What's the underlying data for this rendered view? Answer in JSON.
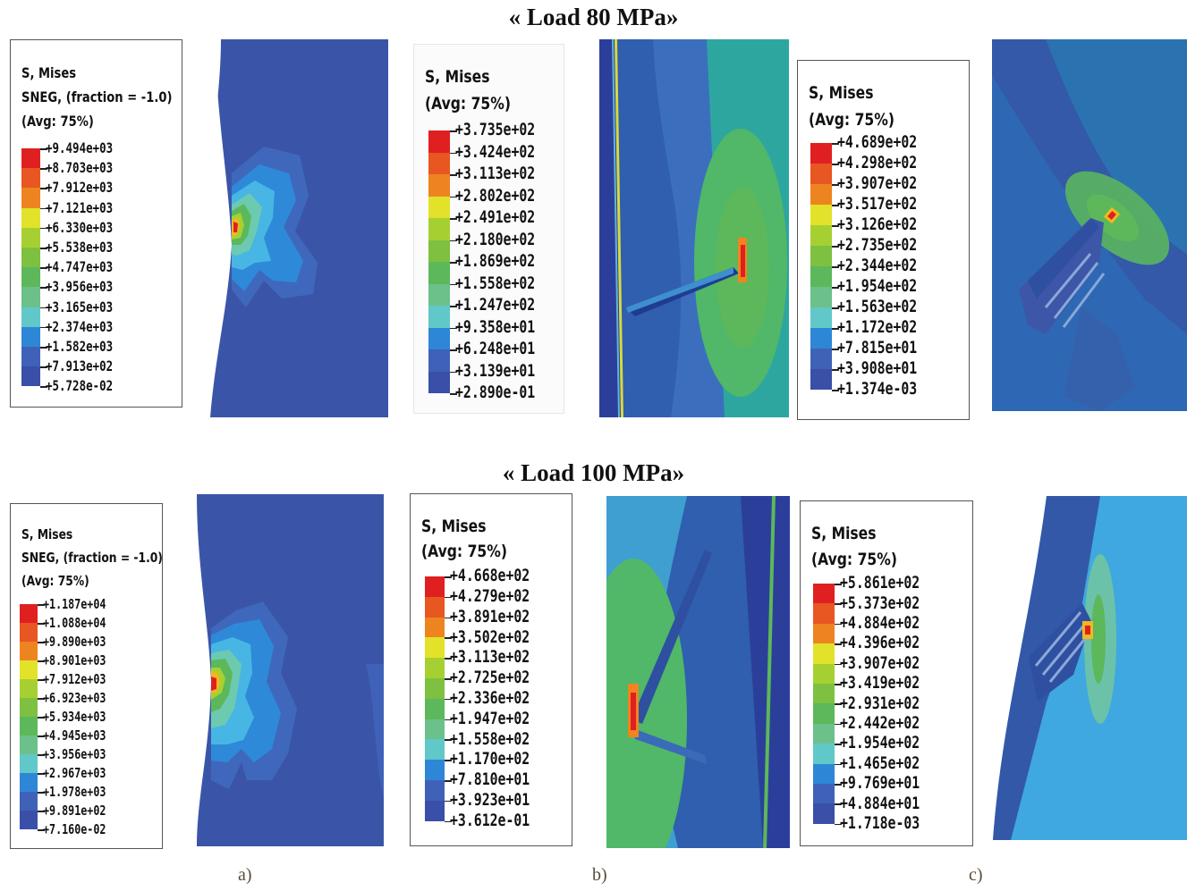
{
  "titles": {
    "top": "« Load 80 MPa»",
    "bottom": "« Load 100 MPa»"
  },
  "sublabels": [
    "a)",
    "b)",
    "c)"
  ],
  "colormap": [
    "#3a4fa8",
    "#3f62b8",
    "#2e86d6",
    "#45b2e6",
    "#60c8c8",
    "#6cc08a",
    "#5cb85a",
    "#7ec040",
    "#a6d032",
    "#e2e22a",
    "#f0b820",
    "#ee8420",
    "#e85622",
    "#e02020"
  ],
  "legends": [
    {
      "id": "top-a",
      "header": [
        "S, Mises",
        "SNEG, (fraction = -1.0)",
        "(Avg: 75%)"
      ],
      "values": [
        "+9.494e+03",
        "+8.703e+03",
        "+7.912e+03",
        "+7.121e+03",
        "+6.330e+03",
        "+5.538e+03",
        "+4.747e+03",
        "+3.956e+03",
        "+3.165e+03",
        "+2.374e+03",
        "+1.582e+03",
        "+7.913e+02",
        "+5.728e-02"
      ]
    },
    {
      "id": "top-b",
      "header": [
        "S, Mises",
        "(Avg: 75%)"
      ],
      "values": [
        "+3.735e+02",
        "+3.424e+02",
        "+3.113e+02",
        "+2.802e+02",
        "+2.491e+02",
        "+2.180e+02",
        "+1.869e+02",
        "+1.558e+02",
        "+1.247e+02",
        "+9.358e+01",
        "+6.248e+01",
        "+3.139e+01",
        "+2.890e-01"
      ]
    },
    {
      "id": "top-c",
      "header": [
        "S, Mises",
        "(Avg: 75%)"
      ],
      "values": [
        "+4.689e+02",
        "+4.298e+02",
        "+3.907e+02",
        "+3.517e+02",
        "+3.126e+02",
        "+2.735e+02",
        "+2.344e+02",
        "+1.954e+02",
        "+1.563e+02",
        "+1.172e+02",
        "+7.815e+01",
        "+3.908e+01",
        "+1.374e-03"
      ]
    },
    {
      "id": "bottom-a",
      "header": [
        "S, Mises",
        "SNEG, (fraction = -1.0)",
        "(Avg: 75%)"
      ],
      "values": [
        "+1.187e+04",
        "+1.088e+04",
        "+9.890e+03",
        "+8.901e+03",
        "+7.912e+03",
        "+6.923e+03",
        "+5.934e+03",
        "+4.945e+03",
        "+3.956e+03",
        "+2.967e+03",
        "+1.978e+03",
        "+9.891e+02",
        "+7.160e-02"
      ]
    },
    {
      "id": "bottom-b",
      "header": [
        "S, Mises",
        "(Avg: 75%)"
      ],
      "values": [
        "+4.668e+02",
        "+4.279e+02",
        "+3.891e+02",
        "+3.502e+02",
        "+3.113e+02",
        "+2.725e+02",
        "+2.336e+02",
        "+1.947e+02",
        "+1.558e+02",
        "+1.170e+02",
        "+7.810e+01",
        "+3.923e+01",
        "+3.612e-01"
      ]
    },
    {
      "id": "bottom-c",
      "header": [
        "S, Mises",
        "(Avg: 75%)"
      ],
      "values": [
        "+5.861e+02",
        "+5.373e+02",
        "+4.884e+02",
        "+4.396e+02",
        "+3.907e+02",
        "+3.419e+02",
        "+2.931e+02",
        "+2.442e+02",
        "+1.954e+02",
        "+1.465e+02",
        "+9.769e+01",
        "+4.884e+01",
        "+1.718e-03"
      ]
    }
  ]
}
